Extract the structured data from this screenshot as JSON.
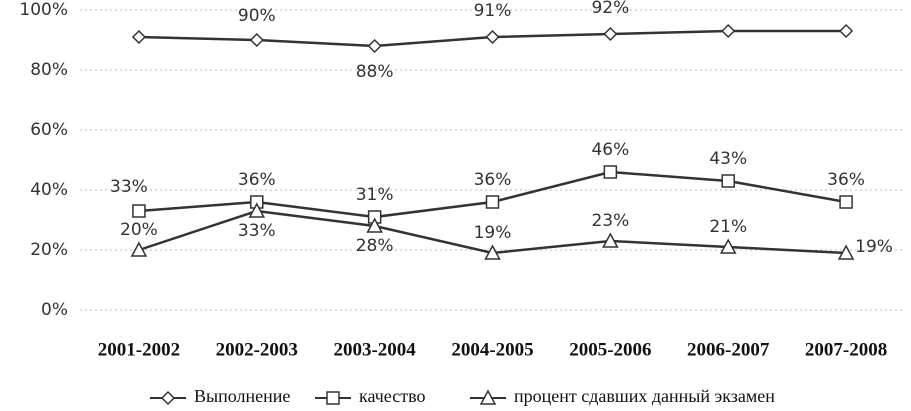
{
  "chart_data": {
    "type": "line",
    "categories": [
      "2001-2002",
      "2002-2003",
      "2003-2004",
      "2004-2005",
      "2005-2006",
      "2006-2007",
      "2007-2008"
    ],
    "series": [
      {
        "name": "Выполнение",
        "color": "#333333",
        "marker": "diamond",
        "values": [
          91,
          90,
          88,
          91,
          92,
          93,
          93
        ],
        "value_labels": [
          null,
          "90%",
          "88%",
          "91%",
          "92%",
          null,
          null
        ]
      },
      {
        "name": "качество",
        "color": "#333333",
        "marker": "square",
        "values": [
          33,
          36,
          31,
          36,
          46,
          43,
          36
        ],
        "value_labels": [
          "33%",
          "36%",
          "31%",
          "36%",
          "46%",
          "43%",
          "36%"
        ]
      },
      {
        "name": "процент сдавших данный экзамен",
        "color": "#333333",
        "marker": "triangle",
        "values": [
          20,
          33,
          28,
          19,
          23,
          21,
          19
        ],
        "value_labels": [
          "20%",
          "33%",
          "28%",
          "19%",
          "23%",
          "21%",
          "19%"
        ]
      }
    ],
    "ylim": [
      0,
      100
    ],
    "yticks": [
      {
        "value": 0,
        "label": "0%"
      },
      {
        "value": 20,
        "label": "20%"
      },
      {
        "value": 40,
        "label": "40%"
      },
      {
        "value": 60,
        "label": "60%"
      },
      {
        "value": 80,
        "label": "80%"
      },
      {
        "value": 100,
        "label": "100%"
      }
    ],
    "grid": true
  }
}
